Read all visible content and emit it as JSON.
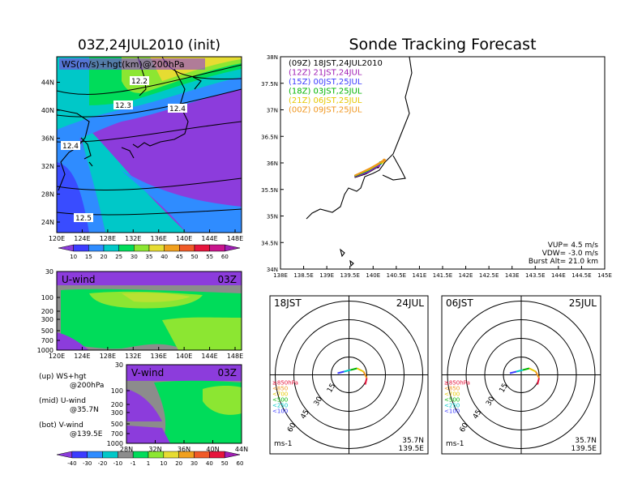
{
  "titles": {
    "left": "03Z,24JUL2010 (init)",
    "right": "Sonde Tracking Forecast"
  },
  "top_map": {
    "label": "WS(m/s)+hgt(km)@200hPa",
    "x_ticks": [
      "120E",
      "124E",
      "128E",
      "132E",
      "136E",
      "140E",
      "144E",
      "148E"
    ],
    "y_ticks": [
      "24N",
      "28N",
      "32N",
      "36N",
      "40N",
      "44N"
    ],
    "contour_labels": [
      "12.2",
      "12.3",
      "12.4",
      "12.4",
      "12.5"
    ]
  },
  "ws_colorbar": {
    "labels": [
      "10",
      "15",
      "20",
      "25",
      "30",
      "35",
      "40",
      "45",
      "50",
      "55",
      "60"
    ],
    "colors": [
      "#8c3cdc",
      "#3c3cff",
      "#2f8cff",
      "#00c8c8",
      "#00dc5a",
      "#8ce632",
      "#e6dc32",
      "#f0a01e",
      "#f05a28",
      "#e6143c",
      "#c8148c",
      "#a01eb4"
    ]
  },
  "u_panel": {
    "label": "U-wind",
    "time": "03Z",
    "y_ticks": [
      "30",
      "100",
      "200",
      "300",
      "500",
      "700",
      "1000"
    ],
    "x_ticks": [
      "120E",
      "124E",
      "128E",
      "132E",
      "136E",
      "140E",
      "144E",
      "148E"
    ]
  },
  "v_panel": {
    "label": "V-wind",
    "time": "03Z",
    "y_ticks": [
      "30",
      "100",
      "200",
      "300",
      "500",
      "700",
      "1000"
    ],
    "x_ticks": [
      "28N",
      "32N",
      "36N",
      "40N",
      "44N"
    ]
  },
  "notes": [
    {
      "line1": "(up) WS+hgt",
      "line2": "@200hPa"
    },
    {
      "line1": "(mid) U-wind",
      "line2": "@35.7N"
    },
    {
      "line1": "(bot) V-wind",
      "line2": "@139.5E"
    }
  ],
  "wind_colorbar": {
    "labels": [
      "-40",
      "-30",
      "-20",
      "-10",
      "-1",
      "1",
      "10",
      "20",
      "30",
      "40",
      "50",
      "60"
    ],
    "colors": [
      "#8c3cdc",
      "#3c3cff",
      "#2f8cff",
      "#00c8c8",
      "#8c8c8c",
      "#00dc5a",
      "#8ce632",
      "#e6dc32",
      "#f0a01e",
      "#f05a28",
      "#e6143c",
      "#a01eb4"
    ]
  },
  "track_map": {
    "x_ticks": [
      "138E",
      "138.5E",
      "139E",
      "139.5E",
      "140E",
      "140.5E",
      "141E",
      "141.5E",
      "142E",
      "142.5E",
      "143E",
      "143.5E",
      "144E",
      "144.5E",
      "145E"
    ],
    "y_ticks": [
      "34N",
      "34.5N",
      "35N",
      "35.5N",
      "36N",
      "36.5N",
      "37N",
      "37.5N",
      "38N"
    ],
    "legend": [
      {
        "label": "(09Z) 18JST,24JUL2010",
        "color": "#000000"
      },
      {
        "label": "(12Z) 21JST,24JUL",
        "color": "#a01eb4"
      },
      {
        "label": "(15Z) 00JST,25JUL",
        "color": "#3c3cff"
      },
      {
        "label": "(18Z) 03JST,25JUL",
        "color": "#00b400"
      },
      {
        "label": "(21Z) 06JST,25JUL",
        "color": "#e6c800"
      },
      {
        "label": "(00Z) 09JST,25JUL",
        "color": "#f0961e"
      }
    ],
    "stats": [
      "VUP= 4.5 m/s",
      "VDW= -3.0 m/s",
      "Burst Alt= 21.0 km"
    ]
  },
  "hodographs": [
    {
      "time": "18JST",
      "date": "24JUL",
      "lat": "35.7N",
      "lon": "139.5E",
      "unit": "ms-1"
    },
    {
      "time": "06JST",
      "date": "25JUL",
      "lat": "35.7N",
      "lon": "139.5E",
      "unit": "ms-1"
    }
  ],
  "hodo_rings": [
    "15",
    "30",
    "45",
    "60"
  ],
  "hodo_legend": [
    {
      "label": "≥850hPa",
      "color": "#e6143c"
    },
    {
      "label": "<850",
      "color": "#f0961e"
    },
    {
      "label": "<700",
      "color": "#e6c800"
    },
    {
      "label": "<500",
      "color": "#00b400"
    },
    {
      "label": "<250",
      "color": "#00c8c8"
    },
    {
      "label": "<100",
      "color": "#3c3cff"
    }
  ],
  "chart_data": {
    "type": "line",
    "title": "Sonde Tracking Forecast",
    "xlim": [
      138,
      145
    ],
    "ylim": [
      34,
      38
    ],
    "series": [
      {
        "name": "(09Z) 18JST,24JUL2010",
        "points": [
          [
            139.6,
            35.73
          ],
          [
            139.85,
            35.8
          ],
          [
            140.1,
            35.93
          ]
        ]
      },
      {
        "name": "(12Z) 21JST,24JUL",
        "points": [
          [
            139.6,
            35.74
          ],
          [
            139.87,
            35.82
          ],
          [
            140.12,
            35.95
          ]
        ]
      },
      {
        "name": "(15Z) 00JST,25JUL",
        "points": [
          [
            139.6,
            35.75
          ],
          [
            139.88,
            35.84
          ],
          [
            140.14,
            35.98
          ]
        ]
      },
      {
        "name": "(18Z) 03JST,25JUL",
        "points": [
          [
            139.6,
            35.75
          ],
          [
            139.9,
            35.86
          ],
          [
            140.16,
            36.0
          ]
        ]
      },
      {
        "name": "(21Z) 06JST,25JUL",
        "points": [
          [
            139.6,
            35.76
          ],
          [
            139.92,
            35.88
          ],
          [
            140.2,
            36.02
          ]
        ]
      },
      {
        "name": "(00Z) 09JST,25JUL",
        "points": [
          [
            139.6,
            35.76
          ],
          [
            139.94,
            35.9
          ],
          [
            140.24,
            36.05
          ]
        ]
      }
    ]
  }
}
